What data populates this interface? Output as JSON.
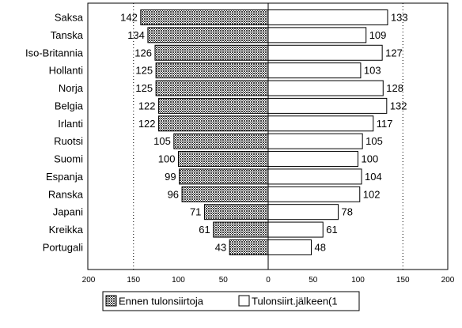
{
  "chart_data": {
    "type": "bar",
    "orientation": "horizontal-butterfly",
    "categories": [
      "Saksa",
      "Tanska",
      "Iso-Britannia",
      "Hollanti",
      "Norja",
      "Belgia",
      "Irlanti",
      "Ruotsi",
      "Suomi",
      "Espanja",
      "Ranska",
      "Japani",
      "Kreikka",
      "Portugali"
    ],
    "series": [
      {
        "name": "Ennen tulonsiirtoja",
        "direction": "left",
        "pattern": "crosshatch",
        "values": [
          142,
          134,
          126,
          125,
          125,
          122,
          122,
          105,
          100,
          99,
          96,
          71,
          61,
          43
        ]
      },
      {
        "name": "Tulonsiirt.jälkeen(1",
        "direction": "right",
        "pattern": "white",
        "values": [
          133,
          109,
          127,
          103,
          128,
          132,
          117,
          105,
          100,
          104,
          102,
          78,
          61,
          48
        ]
      }
    ],
    "xlim": [
      -200,
      200
    ],
    "x_ticks": [
      -200,
      -150,
      -100,
      -50,
      0,
      50,
      100,
      150,
      200
    ],
    "x_tick_labels": [
      "200",
      "150",
      "100",
      "50",
      "0",
      "50",
      "100",
      "150",
      "200"
    ],
    "gridlines": [
      -150,
      150
    ],
    "legend_position": "bottom-center"
  }
}
